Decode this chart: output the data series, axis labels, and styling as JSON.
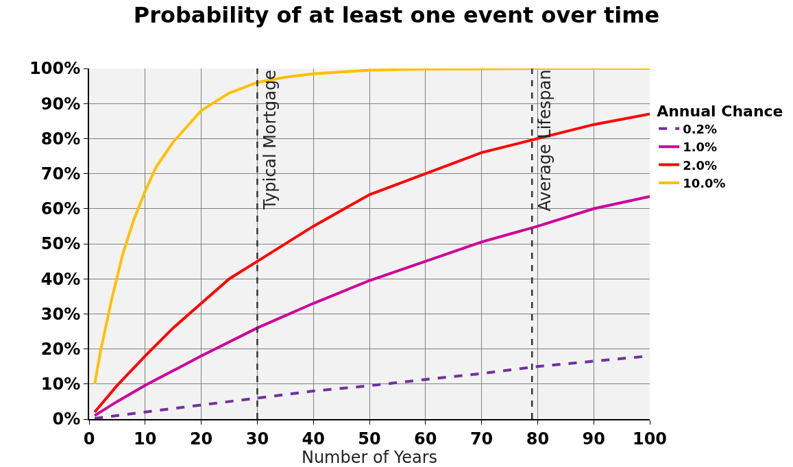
{
  "chart_data": {
    "type": "line",
    "title": "Probability of at least one event over time",
    "xlabel": "Number of Years",
    "legend_title": "Annual Chance",
    "xlim": [
      0,
      100
    ],
    "xticks": [
      0,
      10,
      20,
      30,
      40,
      50,
      60,
      70,
      80,
      90,
      100
    ],
    "ylim": [
      0,
      100
    ],
    "yticks": [
      {
        "value": 0,
        "label": "0%"
      },
      {
        "value": 10,
        "label": "10%"
      },
      {
        "value": 20,
        "label": "20%"
      },
      {
        "value": 30,
        "label": "30%"
      },
      {
        "value": 40,
        "label": "40%"
      },
      {
        "value": 50,
        "label": "50%"
      },
      {
        "value": 60,
        "label": "60%"
      },
      {
        "value": 70,
        "label": "70%"
      },
      {
        "value": 80,
        "label": "80%"
      },
      {
        "value": 90,
        "label": "90%"
      },
      {
        "value": 100,
        "label": "100%"
      }
    ],
    "grid": true,
    "legend": "right",
    "marker": "none",
    "series": [
      {
        "name": "0.2%",
        "color": "#7030a0",
        "line_style": "dashed",
        "x": [
          1,
          10,
          20,
          30,
          40,
          50,
          60,
          70,
          80,
          90,
          100
        ],
        "values": [
          0.2,
          2,
          4,
          6,
          8,
          9.5,
          11.3,
          13,
          15,
          16.5,
          18
        ]
      },
      {
        "name": "1.0%",
        "color": "#cc0099",
        "line_style": "solid",
        "x": [
          1,
          5,
          10,
          20,
          30,
          40,
          50,
          60,
          70,
          80,
          90,
          100
        ],
        "values": [
          1,
          5,
          9.6,
          18,
          26,
          33,
          39.5,
          45,
          50.5,
          55,
          60,
          63.5
        ]
      },
      {
        "name": "2.0%",
        "color": "#ff0000",
        "line_style": "solid",
        "x": [
          1,
          5,
          10,
          15,
          20,
          25,
          30,
          40,
          50,
          60,
          70,
          80,
          90,
          100
        ],
        "values": [
          2,
          9.6,
          18,
          26,
          33,
          40,
          45,
          55,
          64,
          70,
          76,
          80,
          84,
          87
        ]
      },
      {
        "name": "10.0%",
        "color": "#ffc000",
        "line_style": "solid",
        "x": [
          1,
          2,
          4,
          6,
          8,
          10,
          12,
          15,
          20,
          25,
          30,
          35,
          40,
          50,
          60,
          80,
          100
        ],
        "values": [
          10,
          19,
          34,
          47,
          57,
          65,
          72,
          79,
          88,
          93,
          96,
          97.5,
          98.5,
          99.5,
          99.8,
          100,
          100
        ]
      }
    ],
    "ref_lines": [
      {
        "axis": "x",
        "value": 30,
        "label": "Typical Mortgage",
        "color": "#333333",
        "line_style": "dashed"
      },
      {
        "axis": "x",
        "value": 79,
        "label": "Average Lifespan",
        "color": "#333333",
        "line_style": "dashed"
      }
    ]
  }
}
